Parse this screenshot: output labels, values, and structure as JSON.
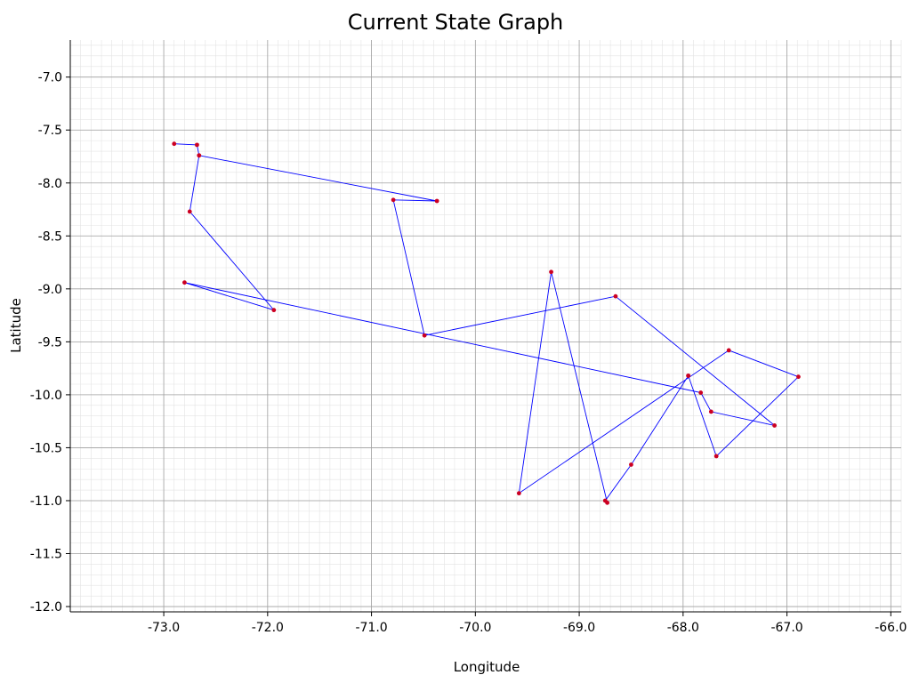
{
  "chart_data": {
    "type": "line",
    "title": "Current State Graph",
    "xlabel": "Longitude",
    "ylabel": "Latitude",
    "xlim": [
      -73.9,
      -65.9
    ],
    "ylim": [
      -12.05,
      -6.65
    ],
    "x_ticks": [
      -73.0,
      -72.0,
      -71.0,
      -70.0,
      -69.0,
      -68.0,
      -67.0,
      -66.0
    ],
    "y_ticks": [
      -7.0,
      -7.5,
      -8.0,
      -8.5,
      -9.0,
      -9.5,
      -10.0,
      -10.5,
      -11.0,
      -11.5,
      -12.0
    ],
    "x_tick_labels": [
      "-73.0",
      "-72.0",
      "-71.0",
      "-70.0",
      "-69.0",
      "-68.0",
      "-67.0",
      "-66.0"
    ],
    "y_tick_labels": [
      "-7.0",
      "-7.5",
      "-8.0",
      "-8.5",
      "-9.0",
      "-9.5",
      "-10.0",
      "-10.5",
      "-11.0",
      "-11.5",
      "-12.0"
    ],
    "grid": true,
    "series": [
      {
        "line_color": "#0000ff",
        "marker_color": "#cc0022",
        "points": [
          [
            -72.66,
            -7.74
          ],
          [
            -70.37,
            -8.17
          ],
          [
            -70.79,
            -8.16
          ],
          [
            -70.49,
            -9.44
          ],
          [
            -68.65,
            -9.07
          ],
          [
            -67.12,
            -10.29
          ],
          [
            -67.73,
            -10.16
          ],
          [
            -67.83,
            -9.98
          ],
          [
            -72.8,
            -8.94
          ],
          [
            -71.94,
            -9.2
          ],
          [
            -72.75,
            -8.27
          ],
          [
            -72.66,
            -7.74
          ],
          [
            -72.68,
            -7.64
          ],
          [
            -72.9,
            -7.63
          ]
        ]
      },
      {
        "line_color": "#0000ff",
        "marker_color": "#cc0022",
        "points": [
          [
            -67.95,
            -9.82
          ],
          [
            -67.68,
            -10.58
          ],
          [
            -66.89,
            -9.83
          ],
          [
            -67.56,
            -9.58
          ],
          [
            -69.58,
            -10.93
          ],
          [
            -69.27,
            -8.84
          ],
          [
            -68.73,
            -11.02
          ],
          [
            -68.75,
            -11.0
          ],
          [
            -68.5,
            -10.66
          ],
          [
            -67.95,
            -9.82
          ]
        ]
      }
    ]
  }
}
